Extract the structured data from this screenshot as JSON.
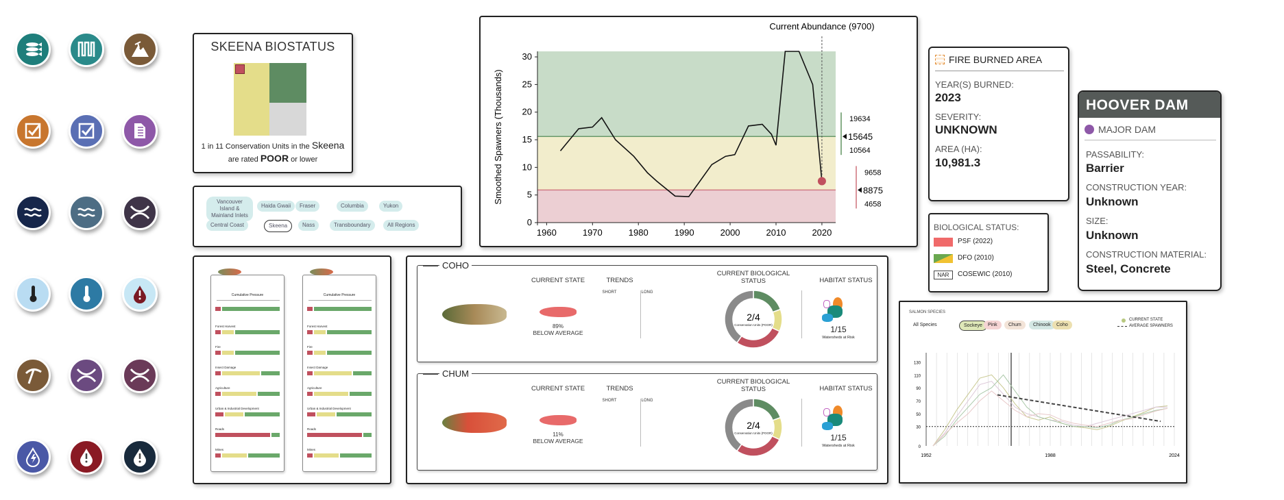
{
  "icons": [
    {
      "name": "fish-icon",
      "color": "#1e7e7b"
    },
    {
      "name": "weir-icon",
      "color": "#2a8a8a"
    },
    {
      "name": "mining-icon",
      "color": "#7a5a38"
    },
    {
      "name": "checklist-orange-icon",
      "color": "#c8762e"
    },
    {
      "name": "checklist-blue-icon",
      "color": "#5a6fb4"
    },
    {
      "name": "document-icon",
      "color": "#8e58a8"
    },
    {
      "name": "waves-navy-icon",
      "color": "#16264a"
    },
    {
      "name": "waves-slate-icon",
      "color": "#4d6d84"
    },
    {
      "name": "crossing-dark-icon",
      "color": "#3f3448"
    },
    {
      "name": "thermometer-light-icon",
      "color": "#b9dcf2"
    },
    {
      "name": "thermometer-blue-icon",
      "color": "#2d7aa4"
    },
    {
      "name": "drop-alert-light-icon",
      "color": "#c7e7f5"
    },
    {
      "name": "pickaxe-icon",
      "color": "#7a5a38"
    },
    {
      "name": "crossing-purple-icon",
      "color": "#6b4a80"
    },
    {
      "name": "crossing-maroon-icon",
      "color": "#6a3a58"
    },
    {
      "name": "lightning-drop-icon",
      "color": "#4a58a6"
    },
    {
      "name": "drop-alert-red-icon",
      "color": "#8a1a24"
    },
    {
      "name": "drop-alert-navy-icon",
      "color": "#182a3c"
    }
  ],
  "biostatus": {
    "title": "SKEENA BIOSTATUS",
    "line1_pre": "1 in 11 Conservation Units in the ",
    "line1_region": "Skeena",
    "line2_pre": "are rated ",
    "line2_rating": "POOR",
    "line2_post": " or lower"
  },
  "regions": [
    "Vancouver Island & Mainland Inlets",
    "Haida Gwaii",
    "Fraser",
    "Columbia",
    "Yukon",
    "Central Coast",
    "Skeena",
    "Nass",
    "Transboundary",
    "All Regions"
  ],
  "regions_selected": "Skeena",
  "pressures": {
    "title": "Cumulative Pressure",
    "items": [
      "Forest Harvest",
      "Fire",
      "Insect Damage",
      "Agriculture",
      "Urban & Industrial Development",
      "Roads",
      "Mines"
    ]
  },
  "chart_data": {
    "type": "line",
    "title": "Current Abundance (9700)",
    "ylabel": "Smoothed Spawners (Thousands)",
    "xlabel": "",
    "xlim": [
      1958,
      2023
    ],
    "ylim": [
      0,
      31
    ],
    "xticks": [
      1960,
      1970,
      1980,
      1990,
      2000,
      2010,
      2020
    ],
    "yticks": [
      0,
      5,
      10,
      15,
      20,
      25,
      30
    ],
    "x": [
      1963,
      1967,
      1970,
      1972,
      1975,
      1979,
      1982,
      1984,
      1988,
      1991,
      1996,
      1999,
      2001,
      2004,
      2007,
      2009,
      2010,
      2012,
      2013,
      2015,
      2018,
      2020
    ],
    "y": [
      13,
      17,
      17.3,
      19,
      15,
      12,
      9,
      7.5,
      4.8,
      4.7,
      10.5,
      12,
      12.3,
      17.5,
      17.8,
      16,
      14,
      31,
      31,
      31,
      25,
      7.5
    ],
    "current_year": 2020,
    "current_value": 7.5,
    "bands": [
      {
        "name": "green",
        "from": 15.6,
        "to": 31,
        "color": "#c8dcc8"
      },
      {
        "name": "yellow",
        "from": 5.9,
        "to": 15.6,
        "color": "#f2edcc"
      },
      {
        "name": "red",
        "from": 0,
        "to": 5.9,
        "color": "#eccfd3"
      }
    ],
    "upper_benchmark": {
      "value": "15645",
      "upper": "19634",
      "lower": "10564"
    },
    "lower_benchmark": {
      "value": "8875",
      "upper": "9658",
      "lower": "4658"
    }
  },
  "fire": {
    "title": "FIRE BURNED AREA",
    "years_label": "YEAR(S) BURNED:",
    "years": "2023",
    "severity_label": "SEVERITY:",
    "severity": "UNKNOWN",
    "area_label": "AREA (HA):",
    "area": "10,981.3"
  },
  "dam": {
    "title": "HOOVER DAM",
    "type": "MAJOR DAM",
    "pass_label": "PASSABILITY:",
    "pass": "Barrier",
    "year_label": "CONSTRUCTION YEAR:",
    "year": "Unknown",
    "size_label": "SIZE:",
    "size": "Unknown",
    "material_label": "CONSTRUCTION MATERIAL:",
    "material": "Steel, Concrete"
  },
  "legend": {
    "title": "BIOLOGICAL STATUS:",
    "psf": "PSF (2022)",
    "dfo": "DFO (2010)",
    "nar": "NAR",
    "cosewic": "COSEWIC (2010)",
    "psf_color": "#f06a6a",
    "dfo_color1": "#6aa84f",
    "dfo_color2": "#f1c232"
  },
  "species_cards": [
    {
      "name": "COHO",
      "state_label": "CURRENT STATE",
      "trends_label": "TRENDS",
      "short": "SHORT",
      "long": "LONG",
      "bio_label": "CURRENT BIOLOGICAL STATUS",
      "bio_value": "2/4",
      "bio_sub": "Conservation Units (POOR)",
      "hab_label": "HABITAT STATUS",
      "state_pct": "89%",
      "state_text": "BELOW AVERAGE",
      "hab_value": "1/15",
      "hab_sub": "Watersheds at Risk"
    },
    {
      "name": "CHUM",
      "state_label": "CURRENT STATE",
      "trends_label": "TRENDS",
      "short": "SHORT",
      "long": "LONG",
      "bio_label": "CURRENT BIOLOGICAL STATUS",
      "bio_value": "2/4",
      "bio_sub": "Conservation Units (POOR)",
      "hab_label": "HABITAT STATUS",
      "state_pct": "11%",
      "state_text": "BELOW AVERAGE",
      "hab_value": "1/15",
      "hab_sub": "Watersheds at Risk"
    }
  ],
  "salmon_chart": {
    "header": "SALMON SPECIES",
    "filters": [
      "All Species",
      "Sockeye",
      "Pink",
      "Chum",
      "Chinook",
      "Coho"
    ],
    "filter_colors": [
      "#ffffff",
      "#dfe8b8",
      "#f5d4d4",
      "#f3e4d8",
      "#d4e8e4",
      "#ece0b0"
    ],
    "legend_current": "CURRENT STATE",
    "legend_avg": "AVERAGE SPAWNERS",
    "yticks": [
      "130",
      "110",
      "90",
      "70",
      "50",
      "30",
      "0"
    ],
    "xticks": [
      "1952",
      "1988",
      "2024"
    ]
  }
}
